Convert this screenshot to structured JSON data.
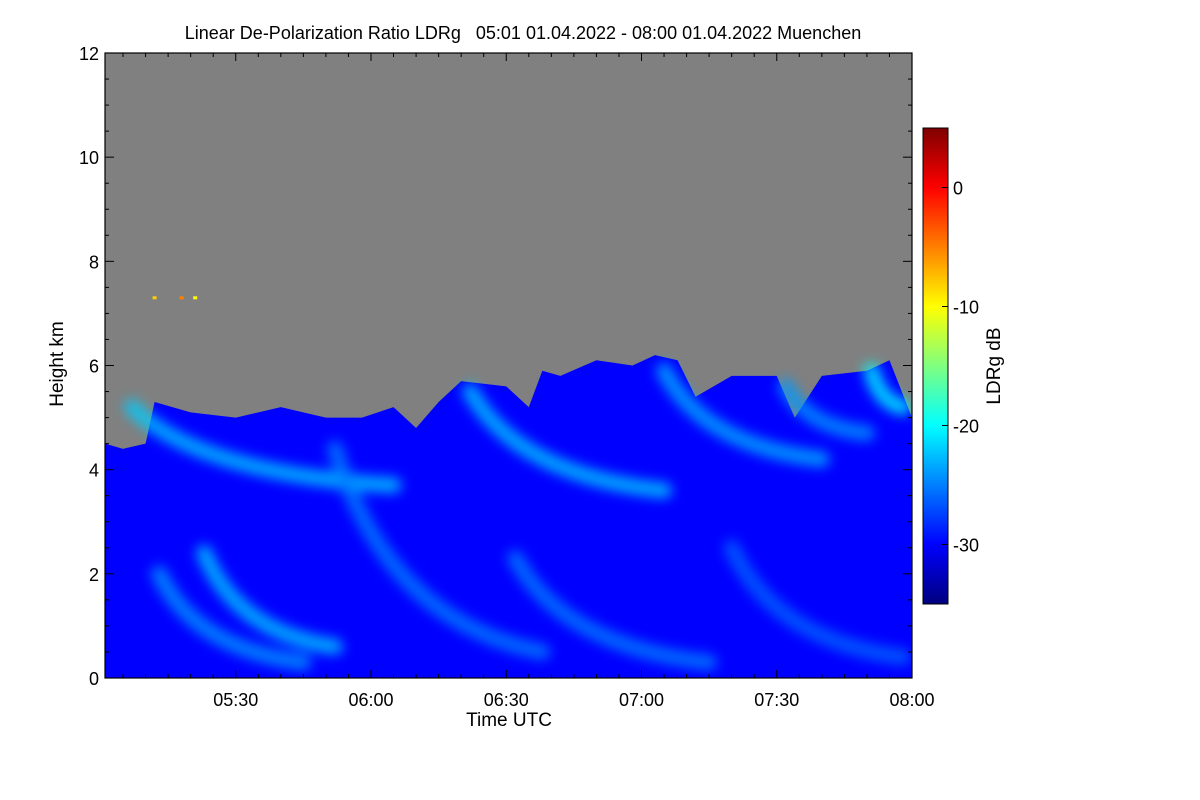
{
  "chart_data": {
    "type": "heatmap",
    "title": "Linear De-Polarization Ratio LDRg   05:01 01.04.2022 - 08:00 01.04.2022 Muenchen",
    "xlabel": "Time UTC",
    "ylabel": "Height km",
    "colorbar_label": "LDRg dB",
    "x_range": [
      "05:01",
      "08:00"
    ],
    "x_range_minutes": [
      301,
      480
    ],
    "y_range": [
      0,
      12
    ],
    "x_ticks": [
      {
        "label": "05:30",
        "minute": 330
      },
      {
        "label": "06:00",
        "minute": 360
      },
      {
        "label": "06:30",
        "minute": 390
      },
      {
        "label": "07:00",
        "minute": 420
      },
      {
        "label": "07:30",
        "minute": 450
      },
      {
        "label": "08:00",
        "minute": 480
      }
    ],
    "y_ticks": [
      {
        "label": "0",
        "value": 0
      },
      {
        "label": "2",
        "value": 2
      },
      {
        "label": "4",
        "value": 4
      },
      {
        "label": "6",
        "value": 6
      },
      {
        "label": "8",
        "value": 8
      },
      {
        "label": "10",
        "value": 10
      },
      {
        "label": "12",
        "value": 12
      }
    ],
    "colorbar_range": [
      -35,
      5
    ],
    "colorbar_ticks": [
      {
        "label": "0",
        "value": 0
      },
      {
        "label": "-10",
        "value": -10
      },
      {
        "label": "-20",
        "value": -20
      },
      {
        "label": "-30",
        "value": -30
      }
    ],
    "no_data_color": "#808080",
    "colormap": [
      "#00007f",
      "#0000ff",
      "#007fff",
      "#00ffff",
      "#7fff7f",
      "#ffff00",
      "#ff7f00",
      "#ff0000",
      "#7f0000"
    ],
    "cloud_top_km": [
      {
        "minute": 301,
        "km": 4.5
      },
      {
        "minute": 305,
        "km": 4.4
      },
      {
        "minute": 310,
        "km": 4.5
      },
      {
        "minute": 312,
        "km": 5.3
      },
      {
        "minute": 320,
        "km": 5.1
      },
      {
        "minute": 330,
        "km": 5.0
      },
      {
        "minute": 340,
        "km": 5.2
      },
      {
        "minute": 350,
        "km": 5.0
      },
      {
        "minute": 358,
        "km": 5.0
      },
      {
        "minute": 365,
        "km": 5.2
      },
      {
        "minute": 370,
        "km": 4.8
      },
      {
        "minute": 375,
        "km": 5.3
      },
      {
        "minute": 380,
        "km": 5.7
      },
      {
        "minute": 390,
        "km": 5.6
      },
      {
        "minute": 395,
        "km": 5.2
      },
      {
        "minute": 398,
        "km": 5.9
      },
      {
        "minute": 402,
        "km": 5.8
      },
      {
        "minute": 410,
        "km": 6.1
      },
      {
        "minute": 418,
        "km": 6.0
      },
      {
        "minute": 423,
        "km": 6.2
      },
      {
        "minute": 428,
        "km": 6.1
      },
      {
        "minute": 432,
        "km": 5.4
      },
      {
        "minute": 440,
        "km": 5.8
      },
      {
        "minute": 450,
        "km": 5.8
      },
      {
        "minute": 454,
        "km": 5.0
      },
      {
        "minute": 460,
        "km": 5.8
      },
      {
        "minute": 470,
        "km": 5.9
      },
      {
        "minute": 475,
        "km": 6.1
      },
      {
        "minute": 480,
        "km": 5.0
      }
    ],
    "cloud_base_km": 0,
    "streaks": [
      {
        "start_minute": 307,
        "start_km": 5.2,
        "end_minute": 365,
        "end_km": 3.7,
        "ldr_db": -22
      },
      {
        "start_minute": 313,
        "start_km": 2.0,
        "end_minute": 345,
        "end_km": 0.3,
        "ldr_db": -24
      },
      {
        "start_minute": 323,
        "start_km": 2.4,
        "end_minute": 352,
        "end_km": 0.6,
        "ldr_db": -22
      },
      {
        "start_minute": 352,
        "start_km": 4.4,
        "end_minute": 398,
        "end_km": 0.5,
        "ldr_db": -25
      },
      {
        "start_minute": 382,
        "start_km": 5.5,
        "end_minute": 425,
        "end_km": 3.6,
        "ldr_db": -22
      },
      {
        "start_minute": 392,
        "start_km": 2.3,
        "end_minute": 435,
        "end_km": 0.3,
        "ldr_db": -25
      },
      {
        "start_minute": 425,
        "start_km": 5.9,
        "end_minute": 460,
        "end_km": 4.2,
        "ldr_db": -23
      },
      {
        "start_minute": 440,
        "start_km": 2.5,
        "end_minute": 478,
        "end_km": 0.4,
        "ldr_db": -26
      },
      {
        "start_minute": 452,
        "start_km": 5.6,
        "end_minute": 470,
        "end_km": 4.7,
        "ldr_db": -24
      },
      {
        "start_minute": 471,
        "start_km": 5.9,
        "end_minute": 478,
        "end_km": 5.2,
        "ldr_db": -20
      }
    ],
    "isolated_returns": [
      {
        "minute": 312,
        "km": 7.3,
        "ldr_db": -8
      },
      {
        "minute": 318,
        "km": 7.3,
        "ldr_db": -5
      },
      {
        "minute": 321,
        "km": 7.3,
        "ldr_db": -10
      }
    ]
  }
}
